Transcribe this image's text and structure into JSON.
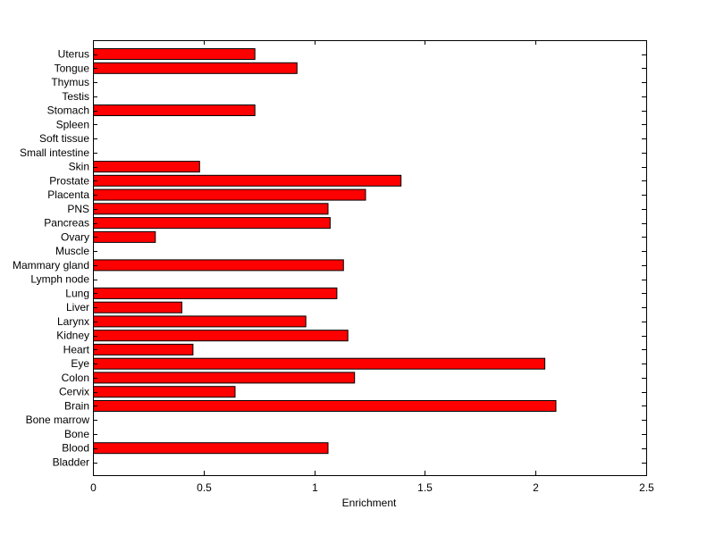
{
  "chart_data": {
    "type": "bar",
    "orientation": "horizontal",
    "title": "",
    "xlabel": "Enrichment",
    "ylabel": "",
    "xlim": [
      0,
      2.5
    ],
    "xticks": [
      0,
      0.5,
      1,
      1.5,
      2,
      2.5
    ],
    "xtick_labels": [
      "0",
      "0.5",
      "1",
      "1.5",
      "2",
      "2.5"
    ],
    "grid": false,
    "legend": "none",
    "categories": [
      "Bladder",
      "Blood",
      "Bone",
      "Bone marrow",
      "Brain",
      "Cervix",
      "Colon",
      "Eye",
      "Heart",
      "Kidney",
      "Larynx",
      "Liver",
      "Lung",
      "Lymph node",
      "Mammary gland",
      "Muscle",
      "Ovary",
      "Pancreas",
      "PNS",
      "Placenta",
      "Prostate",
      "Skin",
      "Small intestine",
      "Soft tissue",
      "Spleen",
      "Stomach",
      "Testis",
      "Thymus",
      "Tongue",
      "Uterus"
    ],
    "values": [
      0,
      1.06,
      0,
      0,
      2.09,
      0.64,
      1.18,
      2.04,
      0.45,
      1.15,
      0.96,
      0.4,
      1.1,
      0,
      1.13,
      0,
      0.28,
      1.07,
      1.06,
      1.23,
      1.39,
      0.48,
      0,
      0,
      0,
      0.73,
      0,
      0,
      0.92,
      0.73
    ],
    "bar_color": "#ff0000"
  }
}
